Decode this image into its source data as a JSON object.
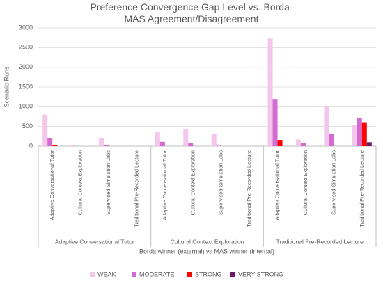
{
  "chart_data": {
    "type": "bar",
    "title": "Preference Convergence Gap Level vs. Borda-MAS Agreement/Disagreement",
    "x_label": "Borda winner (external) vs MAS winner (internal)",
    "y_label": "Scenario Runs",
    "groups": [
      "Adaptive Conversational Tutor",
      "Cultural Context Exploration",
      "Traditional Pre-Recorded Lecture"
    ],
    "categories": [
      "Adaptive Conversational Tutor",
      "Cultural Context Exploration",
      "Supervised Simulation Labs",
      "Traditional Pre-Recorded Lecture",
      "Adaptive Conversational Tutor",
      "Cultural Context Exploration",
      "Supervised Simulation Labs",
      "Traditional Pre-Recorded Lecture",
      "Adaptive Conversational Tutor",
      "Cultural Context Exploration",
      "Supervised Simulation Labs",
      "Traditional Pre-Recorded Lecture"
    ],
    "series": [
      {
        "name": "WEAK",
        "color": "#f4c6ec",
        "values": [
          800,
          20,
          200,
          0,
          350,
          430,
          310,
          10,
          2730,
          170,
          1010,
          540
        ]
      },
      {
        "name": "MODERATE",
        "color": "#d36bd0",
        "values": [
          200,
          0,
          30,
          0,
          110,
          80,
          10,
          0,
          1180,
          80,
          320,
          720
        ]
      },
      {
        "name": "STRONG",
        "color": "#ff0000",
        "values": [
          20,
          0,
          0,
          0,
          0,
          0,
          0,
          0,
          140,
          0,
          0,
          590
        ]
      },
      {
        "name": "VERY STRONG",
        "color": "#6b1a6b",
        "values": [
          0,
          0,
          0,
          0,
          0,
          0,
          0,
          0,
          0,
          0,
          0,
          100
        ]
      }
    ],
    "ylim": [
      0,
      3000
    ],
    "yticks": [
      0,
      500,
      1000,
      1500,
      2000,
      2500,
      3000
    ],
    "grid": true,
    "legend": "bottom"
  }
}
